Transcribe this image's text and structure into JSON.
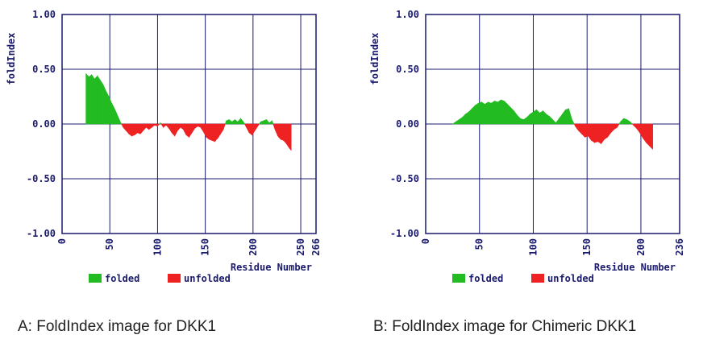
{
  "colors": {
    "folded": "#22bb22",
    "unfolded": "#ee2222",
    "grid": "#1a1a6e",
    "text": "#1a1a6e"
  },
  "chart_data": [
    {
      "type": "area",
      "ylabel": "foldIndex",
      "xlabel": "Residue Number",
      "ylim": [
        -1.0,
        1.0
      ],
      "xlim": [
        0,
        266
      ],
      "y_ticks": [
        "1.00",
        "0.50",
        "0.00",
        "-0.50",
        "-1.00"
      ],
      "x_ticks": [
        "0",
        "50",
        "100",
        "150",
        "200",
        "250",
        "266"
      ],
      "x_tick_values": [
        0,
        50,
        100,
        150,
        200,
        250,
        266
      ],
      "grid": true,
      "legend": {
        "placement": "bottom-left",
        "entries": [
          "folded",
          "unfolded"
        ]
      },
      "caption": "A: FoldIndex image for DKK1",
      "series": {
        "x": [
          25,
          28,
          31,
          34,
          37,
          40,
          43,
          46,
          49,
          52,
          55,
          58,
          61,
          64,
          67,
          70,
          73,
          76,
          79,
          82,
          85,
          88,
          91,
          94,
          97,
          100,
          103,
          106,
          109,
          112,
          115,
          118,
          121,
          124,
          127,
          130,
          133,
          136,
          139,
          142,
          145,
          148,
          151,
          154,
          157,
          160,
          163,
          166,
          169,
          172,
          175,
          178,
          181,
          184,
          187,
          190,
          193,
          196,
          199,
          202,
          205,
          208,
          211,
          214,
          217,
          220,
          223,
          226,
          229,
          232,
          235,
          238,
          240
        ],
        "y": [
          0.46,
          0.43,
          0.45,
          0.41,
          0.44,
          0.4,
          0.36,
          0.3,
          0.25,
          0.19,
          0.14,
          0.08,
          0.02,
          -0.03,
          -0.06,
          -0.09,
          -0.11,
          -0.1,
          -0.08,
          -0.09,
          -0.06,
          -0.03,
          -0.05,
          -0.03,
          -0.01,
          -0.02,
          0.01,
          -0.03,
          -0.01,
          -0.04,
          -0.08,
          -0.11,
          -0.06,
          -0.03,
          -0.05,
          -0.1,
          -0.12,
          -0.08,
          -0.04,
          -0.02,
          -0.03,
          -0.07,
          -0.12,
          -0.14,
          -0.15,
          -0.16,
          -0.13,
          -0.09,
          -0.05,
          0.03,
          0.04,
          0.02,
          0.04,
          0.02,
          0.05,
          0.02,
          -0.03,
          -0.08,
          -0.1,
          -0.06,
          -0.02,
          0.02,
          0.03,
          0.04,
          0.01,
          0.03,
          -0.05,
          -0.11,
          -0.14,
          -0.15,
          -0.18,
          -0.22,
          -0.24
        ]
      }
    },
    {
      "type": "area",
      "ylabel": "foldIndex",
      "xlabel": "Residue Number",
      "ylim": [
        -1.0,
        1.0
      ],
      "xlim": [
        0,
        236
      ],
      "y_ticks": [
        "1.00",
        "0.50",
        "0.00",
        "-0.50",
        "-1.00"
      ],
      "x_ticks": [
        "0",
        "50",
        "100",
        "150",
        "200",
        "236"
      ],
      "x_tick_values": [
        0,
        50,
        100,
        150,
        200,
        236
      ],
      "grid": true,
      "legend": {
        "placement": "bottom-left",
        "entries": [
          "folded",
          "unfolded"
        ]
      },
      "caption": "B: FoldIndex image for Chimeric DKK1",
      "series": {
        "x": [
          25,
          28,
          31,
          34,
          37,
          40,
          43,
          46,
          49,
          52,
          55,
          58,
          61,
          64,
          67,
          70,
          73,
          76,
          79,
          82,
          85,
          88,
          91,
          94,
          97,
          100,
          103,
          106,
          109,
          112,
          115,
          118,
          121,
          124,
          127,
          130,
          133,
          136,
          139,
          142,
          145,
          148,
          151,
          154,
          157,
          160,
          163,
          166,
          169,
          172,
          175,
          178,
          181,
          184,
          187,
          190,
          193,
          196,
          199,
          202,
          205,
          208,
          211
        ],
        "y": [
          0.0,
          0.02,
          0.04,
          0.06,
          0.09,
          0.11,
          0.14,
          0.17,
          0.19,
          0.2,
          0.18,
          0.2,
          0.19,
          0.21,
          0.2,
          0.22,
          0.21,
          0.18,
          0.15,
          0.12,
          0.08,
          0.05,
          0.04,
          0.06,
          0.09,
          0.11,
          0.13,
          0.1,
          0.12,
          0.09,
          0.07,
          0.04,
          0.01,
          0.05,
          0.09,
          0.13,
          0.14,
          0.04,
          -0.02,
          -0.06,
          -0.09,
          -0.12,
          -0.11,
          -0.15,
          -0.17,
          -0.16,
          -0.18,
          -0.14,
          -0.12,
          -0.08,
          -0.05,
          -0.03,
          0.02,
          0.05,
          0.04,
          0.02,
          -0.01,
          -0.04,
          -0.08,
          -0.13,
          -0.17,
          -0.2,
          -0.23
        ]
      }
    }
  ]
}
